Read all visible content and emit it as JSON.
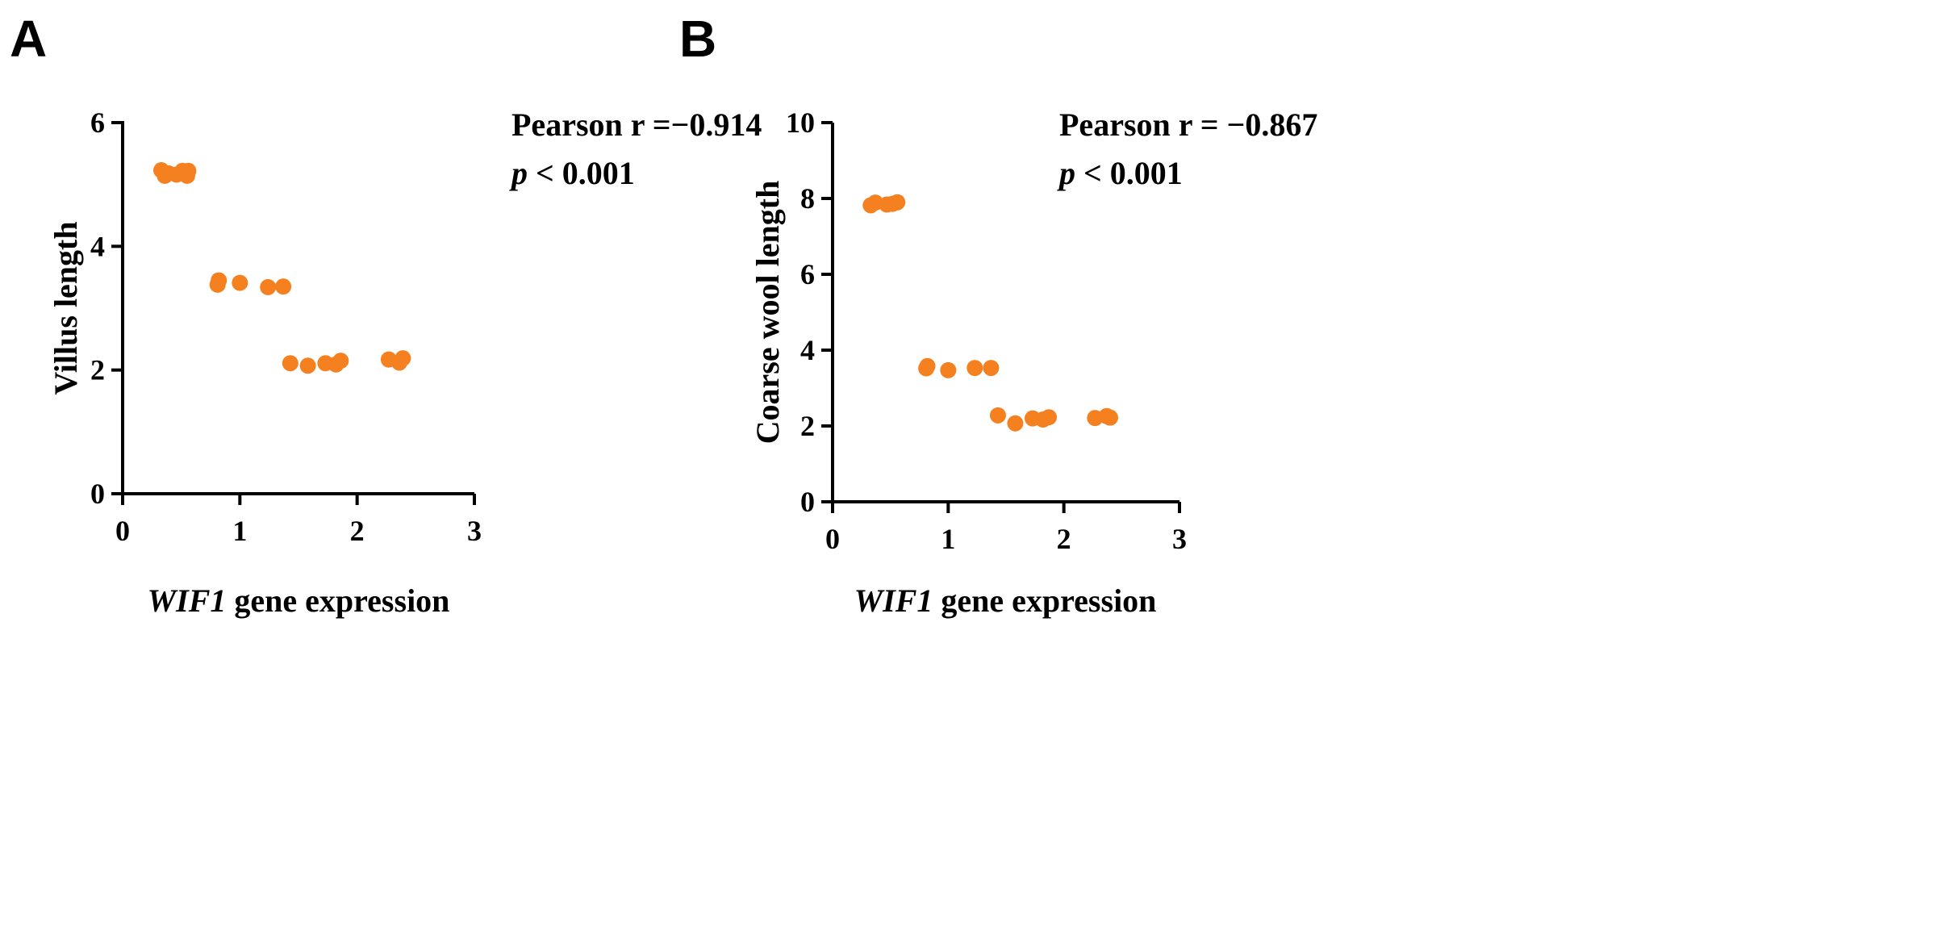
{
  "chart_data": [
    {
      "type": "scatter",
      "panel_label": "A",
      "stat_line1": "Pearson r =−0.914",
      "stat_p_symbol": "p",
      "stat_p_rest": " < 0.001",
      "xlabel_italic": "WIF1",
      "xlabel_rest": " gene expression",
      "ylabel": "Villus length",
      "xlim": [
        0,
        3
      ],
      "ylim": [
        0,
        6
      ],
      "xticks": [
        "0",
        "1",
        "2",
        "3"
      ],
      "yticks": [
        "0",
        "2",
        "4",
        "6"
      ],
      "color": "#f5801f",
      "points": [
        {
          "x": 0.33,
          "y": 5.23
        },
        {
          "x": 0.36,
          "y": 5.14
        },
        {
          "x": 0.39,
          "y": 5.18
        },
        {
          "x": 0.46,
          "y": 5.16
        },
        {
          "x": 0.51,
          "y": 5.22
        },
        {
          "x": 0.55,
          "y": 5.14
        },
        {
          "x": 0.56,
          "y": 5.22
        },
        {
          "x": 0.81,
          "y": 3.38
        },
        {
          "x": 0.82,
          "y": 3.45
        },
        {
          "x": 1.0,
          "y": 3.41
        },
        {
          "x": 1.24,
          "y": 3.34
        },
        {
          "x": 1.37,
          "y": 3.35
        },
        {
          "x": 1.43,
          "y": 2.11
        },
        {
          "x": 1.58,
          "y": 2.07
        },
        {
          "x": 1.73,
          "y": 2.11
        },
        {
          "x": 1.82,
          "y": 2.09
        },
        {
          "x": 1.86,
          "y": 2.15
        },
        {
          "x": 2.27,
          "y": 2.17
        },
        {
          "x": 2.36,
          "y": 2.12
        },
        {
          "x": 2.39,
          "y": 2.19
        }
      ]
    },
    {
      "type": "scatter",
      "panel_label": "B",
      "stat_line1": "Pearson r = −0.867",
      "stat_p_symbol": "p",
      "stat_p_rest": " < 0.001",
      "xlabel_italic": "WIF1",
      "xlabel_rest": " gene expression",
      "ylabel": "Coarse wool length",
      "xlim": [
        0,
        3
      ],
      "ylim": [
        0,
        10
      ],
      "xticks": [
        "0",
        "1",
        "2",
        "3"
      ],
      "yticks": [
        "0",
        "2",
        "4",
        "6",
        "8",
        "10"
      ],
      "color": "#f5801f",
      "points": [
        {
          "x": 0.33,
          "y": 7.82
        },
        {
          "x": 0.37,
          "y": 7.89
        },
        {
          "x": 0.47,
          "y": 7.84
        },
        {
          "x": 0.52,
          "y": 7.86
        },
        {
          "x": 0.56,
          "y": 7.9
        },
        {
          "x": 0.81,
          "y": 3.52
        },
        {
          "x": 0.82,
          "y": 3.58
        },
        {
          "x": 1.0,
          "y": 3.47
        },
        {
          "x": 1.23,
          "y": 3.53
        },
        {
          "x": 1.37,
          "y": 3.53
        },
        {
          "x": 1.43,
          "y": 2.28
        },
        {
          "x": 1.58,
          "y": 2.07
        },
        {
          "x": 1.73,
          "y": 2.2
        },
        {
          "x": 1.82,
          "y": 2.17
        },
        {
          "x": 1.87,
          "y": 2.23
        },
        {
          "x": 2.27,
          "y": 2.21
        },
        {
          "x": 2.37,
          "y": 2.26
        },
        {
          "x": 2.4,
          "y": 2.22
        }
      ]
    }
  ]
}
